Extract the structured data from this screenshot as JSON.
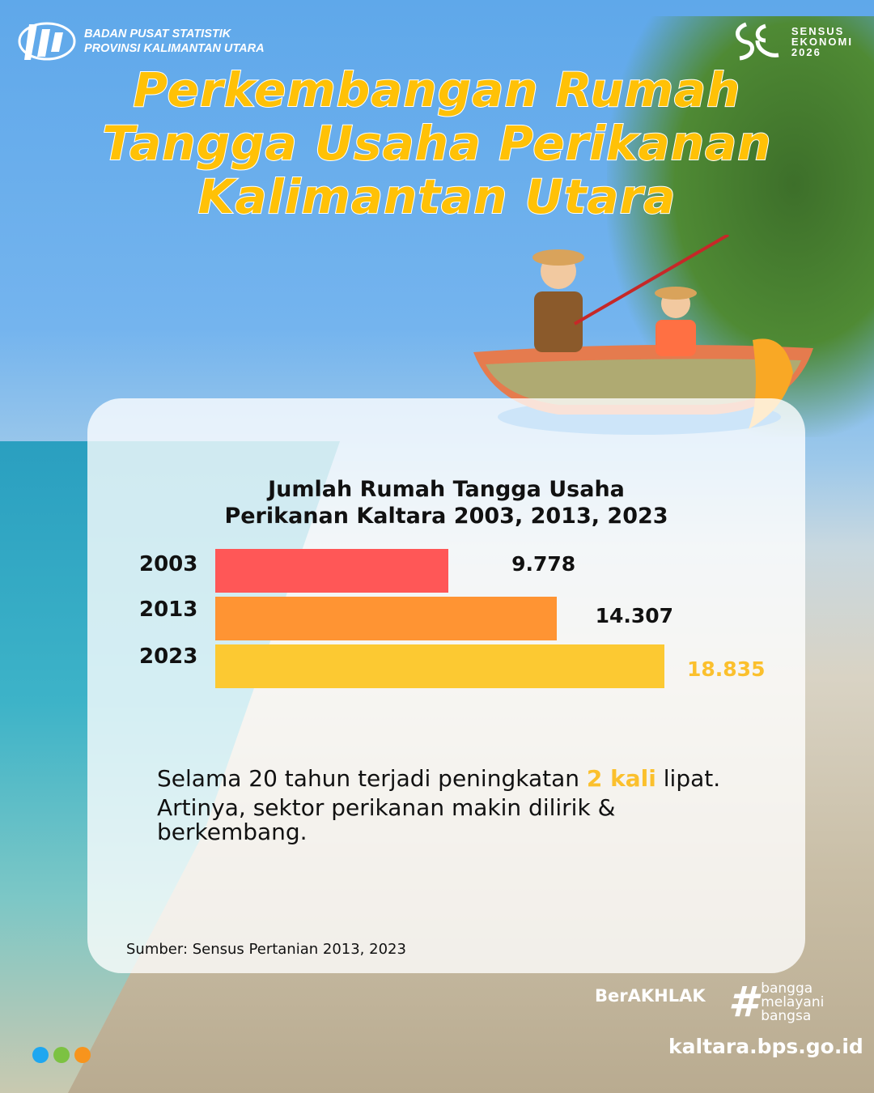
{
  "header": {
    "org_line1": "BADAN PUSAT STATISTIK",
    "org_line2": "PROVINSI KALIMANTAN UTARA",
    "sensus_line1": "SENSUS",
    "sensus_line2": "EKONOMI",
    "sensus_line3": "2026"
  },
  "title": {
    "line1": "Perkembangan Rumah",
    "line2": "Tangga Usaha Perikanan",
    "line3": "Kalimantan Utara"
  },
  "chart_data": {
    "type": "bar",
    "orientation": "horizontal",
    "title_line1": "Jumlah Rumah Tangga Usaha",
    "title_line2": "Perikanan Kaltara 2003, 2013, 2023",
    "categories": [
      "2003",
      "2013",
      "2023"
    ],
    "values": [
      9778,
      14307,
      18835
    ],
    "value_labels": [
      "9.778",
      "14.307",
      "18.835"
    ],
    "colors": [
      "#ff5757",
      "#ff9433",
      "#fcc932"
    ],
    "value_label_colors": [
      "#111111",
      "#111111",
      "#fbc02d"
    ],
    "grid": false,
    "xlim": [
      0,
      18835
    ]
  },
  "description": {
    "part1": "Selama 20 tahun terjadi peningkatan ",
    "highlight": "2 kali",
    "part2": " lipat.",
    "line2": "Artinya, sektor perikanan makin dilirik &",
    "line3": "berkembang."
  },
  "source": "Sumber: Sensus Pertanian 2013, 2023",
  "footer": {
    "berakhlak": "BerAKHLAK",
    "bangga1": "bangga",
    "bangga2": "melayani",
    "bangga3": "bangsa",
    "url": "kaltara.bps.go.id",
    "dot_colors": [
      "#1ea7f0",
      "#7cc242",
      "#f7941d"
    ]
  }
}
